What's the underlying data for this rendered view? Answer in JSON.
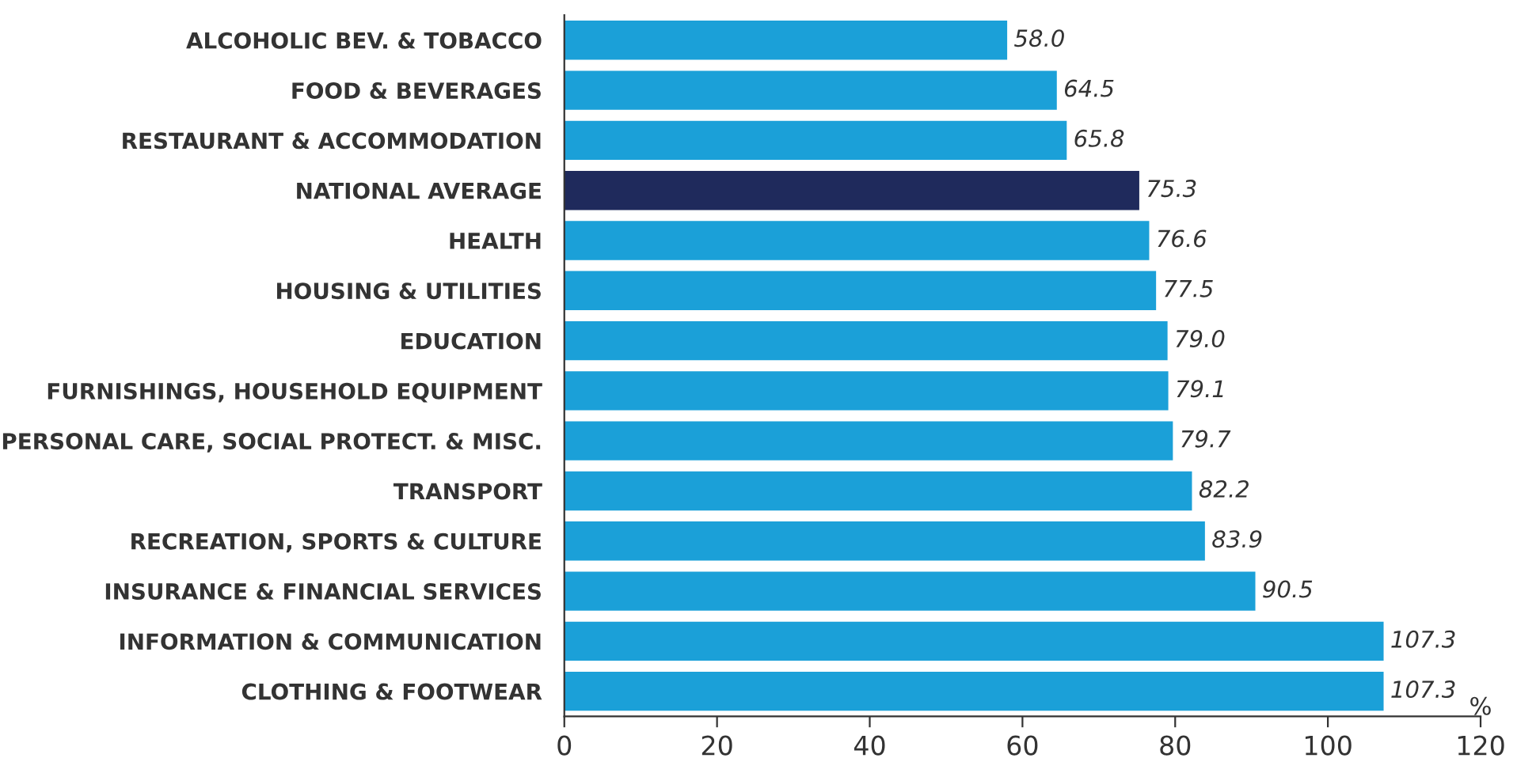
{
  "chart_data": {
    "type": "bar",
    "orientation": "horizontal",
    "categories": [
      "ALCOHOLIC BEV. & TOBACCO",
      "FOOD & BEVERAGES",
      "RESTAURANT & ACCOMMODATION",
      "NATIONAL AVERAGE",
      "HEALTH",
      "HOUSING & UTILITIES",
      "EDUCATION",
      "FURNISHINGS, HOUSEHOLD EQUIPMENT",
      "PERSONAL CARE, SOCIAL PROTECT. & MISC.",
      "TRANSPORT",
      "RECREATION, SPORTS & CULTURE",
      "INSURANCE & FINANCIAL SERVICES",
      "INFORMATION & COMMUNICATION",
      "CLOTHING & FOOTWEAR"
    ],
    "values": [
      58.0,
      64.5,
      65.8,
      75.3,
      76.6,
      77.5,
      79.0,
      79.1,
      79.7,
      82.2,
      83.9,
      90.5,
      107.3,
      107.3
    ],
    "value_labels": [
      "58.0",
      "64.5",
      "65.8",
      "75.3",
      "76.6",
      "77.5",
      "79.0",
      "79.1",
      "79.7",
      "82.2",
      "83.9",
      "90.5",
      "107.3",
      "107.3"
    ],
    "colors": [
      "#1ba0d8",
      "#1ba0d8",
      "#1ba0d8",
      "#1f2a5c",
      "#1ba0d8",
      "#1ba0d8",
      "#1ba0d8",
      "#1ba0d8",
      "#1ba0d8",
      "#1ba0d8",
      "#1ba0d8",
      "#1ba0d8",
      "#1ba0d8",
      "#1ba0d8"
    ],
    "xlabel": "%",
    "xlim": [
      0,
      120
    ],
    "xticks": [
      0,
      20,
      40,
      60,
      80,
      100,
      120
    ],
    "grid": false,
    "legend": false
  }
}
